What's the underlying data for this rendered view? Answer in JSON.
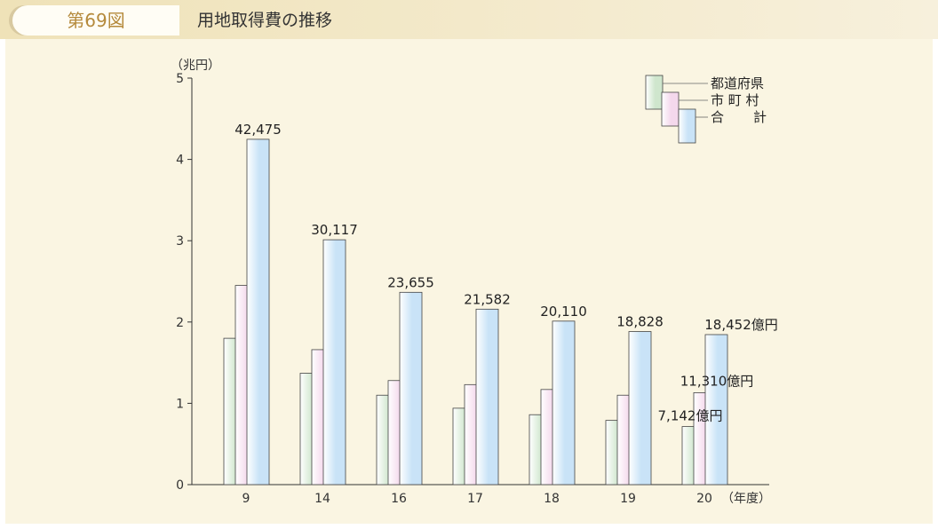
{
  "figure": {
    "label": "第69図",
    "title": "用地取得費の推移"
  },
  "colors": {
    "header_bg": "#f3ead0",
    "panel_bg": "#faf5e2",
    "label_color": "#b58a3c",
    "prefecture": "#cfe6cd",
    "municipality": "#f4d8ec",
    "total": "#c9e3f7"
  },
  "chart_data": {
    "type": "bar",
    "title": "用地取得費の推移",
    "ylabel": "（兆円）",
    "xlabel": "（年度）",
    "ylim": [
      0,
      5
    ],
    "yticks": [
      "0",
      "1",
      "2",
      "3",
      "4",
      "5"
    ],
    "grid": false,
    "legend_position": "top-right",
    "categories": [
      "9",
      "14",
      "16",
      "17",
      "18",
      "19",
      "20"
    ],
    "series": [
      {
        "name": "都道府県",
        "values": [
          1.8,
          1.37,
          1.1,
          0.94,
          0.86,
          0.79,
          0.7142
        ]
      },
      {
        "name": "市 町 村",
        "values": [
          2.45,
          1.66,
          1.28,
          1.23,
          1.17,
          1.1,
          1.131
        ]
      },
      {
        "name": "合 計",
        "values": [
          4.2475,
          3.0117,
          2.3655,
          2.1582,
          2.011,
          1.8828,
          1.8452
        ]
      }
    ],
    "total_labels": [
      "42,475",
      "30,117",
      "23,655",
      "21,582",
      "20,110",
      "18,828",
      "18,452"
    ],
    "annotations": {
      "total_20": "18,452",
      "municipality_20": "11,310",
      "prefecture_20": "7,142",
      "unit": "億円"
    }
  }
}
